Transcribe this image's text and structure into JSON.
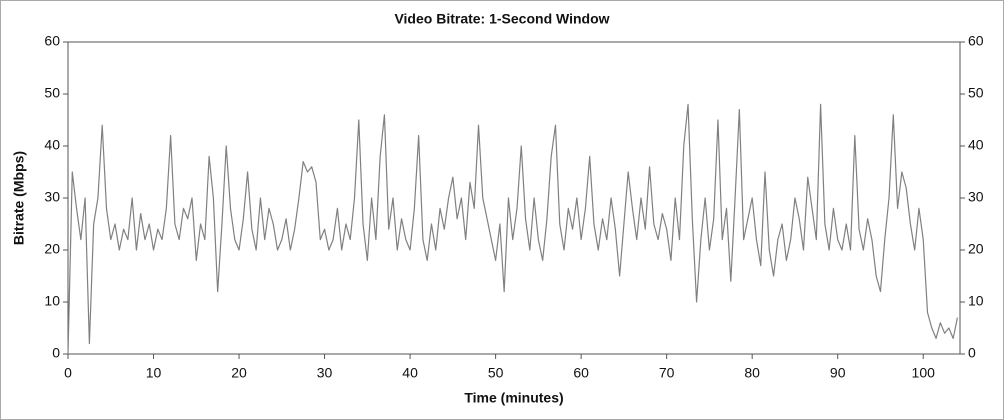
{
  "chart_data": {
    "type": "line",
    "title": "Video Bitrate: 1-Second Window",
    "x_label": "Time (minutes)",
    "y_label": "Bitrate (Mbps)",
    "x": [
      0,
      0.5,
      1,
      1.5,
      2,
      2.5,
      3,
      3.5,
      4,
      4.5,
      5,
      5.5,
      6,
      6.5,
      7,
      7.5,
      8,
      8.5,
      9,
      9.5,
      10,
      10.5,
      11,
      11.5,
      12,
      12.5,
      13,
      13.5,
      14,
      14.5,
      15,
      15.5,
      16,
      16.5,
      17,
      17.5,
      18,
      18.5,
      19,
      19.5,
      20,
      20.5,
      21,
      21.5,
      22,
      22.5,
      23,
      23.5,
      24,
      24.5,
      25,
      25.5,
      26,
      26.5,
      27,
      27.5,
      28,
      28.5,
      29,
      29.5,
      30,
      30.5,
      31,
      31.5,
      32,
      32.5,
      33,
      33.5,
      34,
      34.5,
      35,
      35.5,
      36,
      36.5,
      37,
      37.5,
      38,
      38.5,
      39,
      39.5,
      40,
      40.5,
      41,
      41.5,
      42,
      42.5,
      43,
      43.5,
      44,
      44.5,
      45,
      45.5,
      46,
      46.5,
      47,
      47.5,
      48,
      48.5,
      49,
      49.5,
      50,
      50.5,
      51,
      51.5,
      52,
      52.5,
      53,
      53.5,
      54,
      54.5,
      55,
      55.5,
      56,
      56.5,
      57,
      57.5,
      58,
      58.5,
      59,
      59.5,
      60,
      60.5,
      61,
      61.5,
      62,
      62.5,
      63,
      63.5,
      64,
      64.5,
      65,
      65.5,
      66,
      66.5,
      67,
      67.5,
      68,
      68.5,
      69,
      69.5,
      70,
      70.5,
      71,
      71.5,
      72,
      72.5,
      73,
      73.5,
      74,
      74.5,
      75,
      75.5,
      76,
      76.5,
      77,
      77.5,
      78,
      78.5,
      79,
      79.5,
      80,
      80.5,
      81,
      81.5,
      82,
      82.5,
      83,
      83.5,
      84,
      84.5,
      85,
      85.5,
      86,
      86.5,
      87,
      87.5,
      88,
      88.5,
      89,
      89.5,
      90,
      90.5,
      91,
      91.5,
      92,
      92.5,
      93,
      93.5,
      94,
      94.5,
      95,
      95.5,
      96,
      96.5,
      97,
      97.5,
      98,
      98.5,
      99,
      99.5,
      100,
      100.5,
      101,
      101.5,
      102,
      102.5,
      103,
      103.5,
      104
    ],
    "series": [
      {
        "color": "#808080",
        "values": [
          0,
          35,
          28,
          22,
          30,
          2,
          25,
          30,
          44,
          28,
          22,
          25,
          20,
          24,
          22,
          30,
          20,
          27,
          22,
          25,
          20,
          24,
          22,
          28,
          42,
          25,
          22,
          28,
          26,
          30,
          18,
          25,
          22,
          38,
          30,
          12,
          25,
          40,
          28,
          22,
          20,
          26,
          35,
          24,
          20,
          30,
          22,
          28,
          25,
          20,
          22,
          26,
          20,
          24,
          30,
          37,
          35,
          36,
          33,
          22,
          24,
          20,
          22,
          28,
          20,
          25,
          22,
          30,
          45,
          25,
          18,
          30,
          22,
          38,
          46,
          24,
          30,
          20,
          26,
          22,
          20,
          28,
          42,
          22,
          18,
          25,
          20,
          28,
          24,
          30,
          34,
          26,
          30,
          22,
          33,
          28,
          44,
          30,
          26,
          22,
          18,
          25,
          12,
          30,
          22,
          28,
          40,
          26,
          20,
          30,
          22,
          18,
          26,
          38,
          44,
          25,
          20,
          28,
          24,
          30,
          22,
          28,
          38,
          25,
          20,
          26,
          22,
          30,
          24,
          15,
          25,
          35,
          28,
          22,
          30,
          24,
          36,
          25,
          22,
          27,
          24,
          18,
          30,
          22,
          40,
          48,
          26,
          10,
          22,
          30,
          20,
          26,
          45,
          22,
          28,
          14,
          30,
          47,
          22,
          26,
          30,
          22,
          17,
          35,
          20,
          15,
          22,
          25,
          18,
          22,
          30,
          26,
          20,
          34,
          28,
          22,
          48,
          25,
          20,
          28,
          22,
          20,
          25,
          20,
          42,
          24,
          20,
          26,
          22,
          15,
          12,
          22,
          30,
          46,
          28,
          35,
          32,
          25,
          20,
          28,
          22,
          8,
          5,
          3,
          6,
          4,
          5,
          3,
          7
        ]
      }
    ],
    "xlim": [
      0,
      104.3
    ],
    "ylim": [
      0,
      60
    ],
    "y2lim": [
      0,
      60
    ],
    "xticks": [
      0,
      10,
      20,
      30,
      40,
      50,
      60,
      70,
      80,
      90,
      100
    ],
    "yticks": [
      0,
      10,
      20,
      30,
      40,
      50,
      60
    ],
    "y2ticks": [
      0,
      10,
      20,
      30,
      40,
      50,
      60
    ]
  }
}
